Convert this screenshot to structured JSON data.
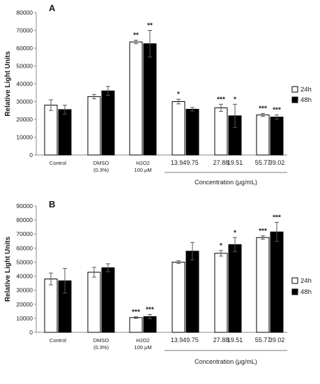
{
  "chart_data": [
    {
      "type": "bar",
      "panel_label": "A",
      "ylabel": "Relative Light Units",
      "ylim": [
        0,
        80000
      ],
      "yticks": [
        0,
        10000,
        20000,
        30000,
        40000,
        50000,
        60000,
        70000,
        80000
      ],
      "ytick_labels": [
        "0",
        "10000",
        "20000",
        "30000",
        "40000",
        "50000",
        "60000",
        "70000",
        "80000"
      ],
      "categories": [
        {
          "lines": [
            "Control"
          ]
        },
        {
          "lines": [
            "DMSO",
            "(0.3%)"
          ]
        },
        {
          "lines": [
            "H2O2",
            "100 μM"
          ],
          "h2o2": true
        },
        {
          "lines": [
            "13.94",
            "9.75"
          ],
          "pair": true
        },
        {
          "lines": [
            "27.88",
            "19.51"
          ],
          "pair": true
        },
        {
          "lines": [
            "55.77",
            "39.02"
          ],
          "pair": true
        }
      ],
      "group_label": "Concentration (μg/mL)",
      "series": [
        {
          "name": "24h",
          "values": [
            28000,
            32800,
            63500,
            30000,
            26500,
            22500
          ],
          "errors": [
            3000,
            1200,
            1000,
            1300,
            2000,
            800
          ],
          "sig": [
            "",
            "",
            "**",
            "*",
            "***",
            "***"
          ]
        },
        {
          "name": "48h",
          "values": [
            25500,
            36000,
            62500,
            25700,
            22000,
            21300
          ],
          "errors": [
            2500,
            2500,
            7500,
            1000,
            6500,
            1200
          ],
          "sig": [
            "",
            "",
            "**",
            "",
            "*",
            "***"
          ]
        }
      ],
      "colors": {
        "24h": "#ffffff",
        "48h": "#000000"
      }
    },
    {
      "type": "bar",
      "panel_label": "B",
      "ylabel": "Relative Light Units",
      "ylim": [
        0,
        90000
      ],
      "yticks": [
        0,
        10000,
        20000,
        30000,
        40000,
        50000,
        60000,
        70000,
        80000,
        90000
      ],
      "ytick_labels": [
        "0",
        "10000",
        "20000",
        "30000",
        "40000",
        "50000",
        "60000",
        "70000",
        "80000",
        "90000"
      ],
      "categories": [
        {
          "lines": [
            "Control"
          ]
        },
        {
          "lines": [
            "DMSO",
            "(0.3%)"
          ]
        },
        {
          "lines": [
            "H2O2",
            "100 μM"
          ],
          "h2o2": true
        },
        {
          "lines": [
            "13.94",
            "9.75"
          ],
          "pair": true
        },
        {
          "lines": [
            "27.88",
            "19.51"
          ],
          "pair": true
        },
        {
          "lines": [
            "55.77",
            "39.02"
          ],
          "pair": true
        }
      ],
      "group_label": "Concentration (μg/mL)",
      "series": [
        {
          "name": "24h",
          "values": [
            38000,
            42800,
            10500,
            50000,
            56300,
            67500
          ],
          "errors": [
            4200,
            3500,
            500,
            1000,
            2000,
            1200
          ],
          "sig": [
            "",
            "",
            "***",
            "",
            "*",
            "***"
          ]
        },
        {
          "name": "48h",
          "values": [
            36700,
            46000,
            11200,
            57800,
            62500,
            71500
          ],
          "errors": [
            8800,
            2800,
            1500,
            6200,
            5000,
            6800
          ],
          "sig": [
            "",
            "",
            "***",
            "",
            "*",
            "***"
          ]
        }
      ],
      "colors": {
        "24h": "#ffffff",
        "48h": "#000000"
      }
    }
  ]
}
